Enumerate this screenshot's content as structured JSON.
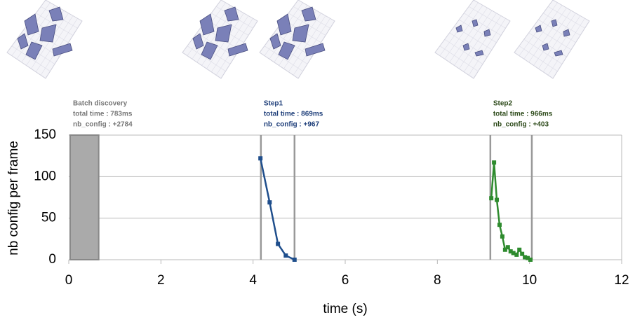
{
  "chart_data": {
    "type": "line",
    "xlabel": "time (s)",
    "ylabel": "nb config per frame",
    "xlim": [
      0,
      12
    ],
    "ylim": [
      0,
      150
    ],
    "xticks": [
      0,
      2,
      4,
      6,
      8,
      10,
      12
    ],
    "yticks": [
      0,
      50,
      100,
      150
    ],
    "grid": true,
    "shaded_regions": [
      {
        "name": "Batch discovery",
        "annotation": [
          "total time  : 783ms",
          "nb_config : +2784"
        ],
        "span": [
          0.03,
          0.65
        ],
        "color": "#aaaaaa",
        "text_color": "#777777"
      }
    ],
    "series": [
      {
        "name": "Step1",
        "annotation": [
          "total time  : 869ms",
          "nb_config : +967"
        ],
        "span": [
          4.17,
          4.9
        ],
        "color": "#1f4e8c",
        "text_color": "#1f3f7a",
        "x": [
          4.16,
          4.36,
          4.54,
          4.71,
          4.9
        ],
        "values": [
          122,
          69,
          19,
          5,
          0
        ]
      },
      {
        "name": "Step2",
        "annotation": [
          "total time  : 966ms",
          "nb_config : +403"
        ],
        "span": [
          9.15,
          10.05
        ],
        "color": "#2e8b2e",
        "text_color": "#2d4a1a",
        "x": [
          9.17,
          9.23,
          9.29,
          9.35,
          9.41,
          9.47,
          9.53,
          9.59,
          9.65,
          9.72,
          9.78,
          9.84,
          9.9,
          9.96,
          10.02
        ],
        "values": [
          74,
          117,
          72,
          42,
          28,
          12,
          15,
          10,
          8,
          6,
          12,
          7,
          3,
          2,
          0
        ]
      }
    ]
  }
}
